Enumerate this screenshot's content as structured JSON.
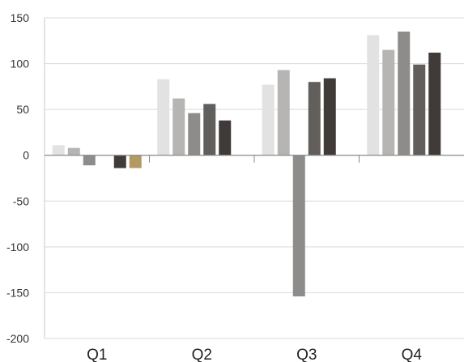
{
  "chart_data": {
    "type": "bar",
    "categories": [
      "Q1",
      "Q2",
      "Q3",
      "Q4"
    ],
    "series": [
      {
        "color": "#e3e2e2",
        "values": [
          11,
          83,
          77,
          131
        ]
      },
      {
        "color": "#b6b5b3",
        "values": [
          8,
          62,
          93,
          115
        ]
      },
      {
        "color": "#8e8c8b",
        "values": [
          -11,
          46,
          -154,
          135
        ]
      },
      {
        "color": "#615e5b",
        "values": [
          null,
          56,
          80,
          99
        ]
      },
      {
        "color": "#403b39",
        "values": [
          -14,
          38,
          84,
          112
        ]
      },
      {
        "color": "#b39a64",
        "values": [
          -14,
          null,
          null,
          null
        ]
      }
    ],
    "yticks": [
      150,
      100,
      50,
      0,
      -50,
      -100,
      -150,
      -200
    ],
    "ylim": [
      -200,
      150
    ],
    "grid": true,
    "title": "",
    "xlabel": "",
    "ylabel": ""
  }
}
